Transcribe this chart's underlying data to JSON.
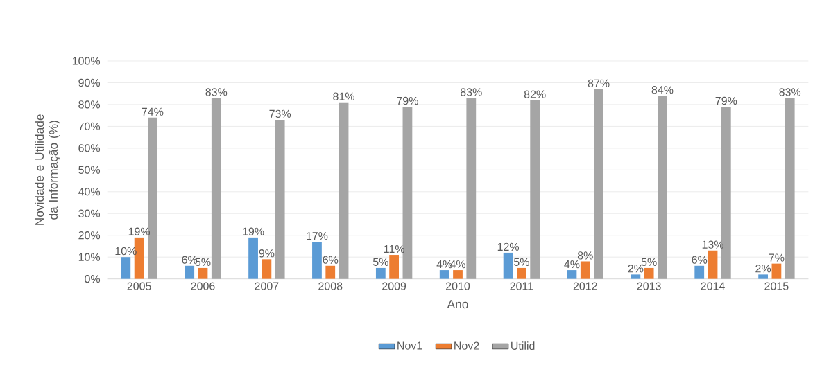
{
  "chart_data": {
    "type": "bar",
    "xlabel": "Ano",
    "ylabel": "Novidade e Utilidade da Informação (%)",
    "categories": [
      "2005",
      "2006",
      "2007",
      "2008",
      "2009",
      "2010",
      "2011",
      "2012",
      "2013",
      "2014",
      "2015"
    ],
    "series": [
      {
        "name": "Nov1",
        "color": "#5b9bd5",
        "values": [
          10,
          6,
          19,
          17,
          5,
          4,
          12,
          4,
          2,
          6,
          2
        ],
        "value_labels": [
          "10%",
          "6%",
          "19%",
          "17%",
          "5%",
          "4%",
          "12%",
          "4%",
          "2%",
          "6%",
          "2%"
        ]
      },
      {
        "name": "Nov2",
        "color": "#ed7d31",
        "values": [
          19,
          5,
          9,
          6,
          11,
          4,
          5,
          8,
          5,
          13,
          7
        ],
        "value_labels": [
          "19%",
          "5%",
          "9%",
          "6%",
          "11%",
          "4%",
          "5%",
          "8%",
          "5%",
          "13%",
          "7%"
        ]
      },
      {
        "name": "Utilid",
        "color": "#a5a5a5",
        "values": [
          74,
          83,
          73,
          81,
          79,
          83,
          82,
          87,
          84,
          79,
          83
        ],
        "value_labels": [
          "74%",
          "83%",
          "73%",
          "81%",
          "79%",
          "83%",
          "82%",
          "87%",
          "84%",
          "79%",
          "83%"
        ]
      }
    ],
    "ylim": [
      0,
      100
    ],
    "yticks": [
      {
        "value": 0,
        "label": "0%"
      },
      {
        "value": 10,
        "label": "10%"
      },
      {
        "value": 20,
        "label": "20%"
      },
      {
        "value": 30,
        "label": "30%"
      },
      {
        "value": 40,
        "label": "40%"
      },
      {
        "value": 50,
        "label": "50%"
      },
      {
        "value": 60,
        "label": "60%"
      },
      {
        "value": 70,
        "label": "70%"
      },
      {
        "value": 80,
        "label": "80%"
      },
      {
        "value": 90,
        "label": "90%"
      },
      {
        "value": 100,
        "label": "100%"
      }
    ],
    "grid": "y",
    "legend": "bottom"
  }
}
